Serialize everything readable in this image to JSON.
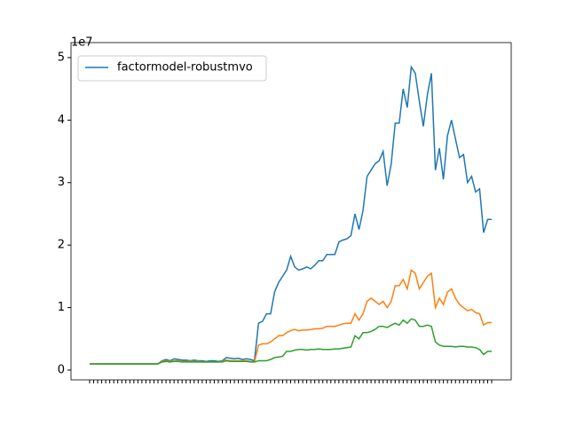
{
  "chart_data": {
    "type": "line",
    "offset_label": "1e7",
    "categories": [
      null,
      null,
      null,
      null,
      null,
      null,
      null,
      null,
      null,
      null,
      null,
      null,
      null,
      null,
      null,
      null,
      null,
      null,
      null,
      null,
      null,
      null,
      null,
      null,
      null,
      null,
      null,
      null,
      null,
      null,
      null,
      null,
      null,
      null,
      null,
      null,
      null,
      null,
      null,
      null,
      null,
      null,
      null,
      null,
      null,
      null,
      null,
      null,
      null,
      null,
      null,
      null,
      null,
      null,
      null,
      null,
      null,
      null,
      null,
      null,
      null,
      null,
      null,
      null,
      null,
      null,
      null,
      null,
      null,
      null,
      null,
      null,
      null,
      null,
      null,
      null,
      null,
      null,
      null,
      null,
      null,
      null,
      null,
      null,
      null,
      null,
      null,
      null,
      null,
      null,
      null,
      null,
      null,
      null,
      null,
      null,
      null,
      null,
      null,
      null,
      null
    ],
    "series": [
      {
        "name": "factormodel-robustmvo",
        "color": "#1f77b4",
        "values": [
          0.1,
          0.1,
          0.1,
          0.1,
          0.1,
          0.1,
          0.1,
          0.1,
          0.1,
          0.1,
          0.1,
          0.1,
          0.1,
          0.1,
          0.1,
          0.1,
          0.1,
          0.1,
          0.15,
          0.17,
          0.15,
          0.18,
          0.17,
          0.16,
          0.16,
          0.15,
          0.16,
          0.15,
          0.15,
          0.14,
          0.15,
          0.15,
          0.14,
          0.15,
          0.2,
          0.19,
          0.18,
          0.19,
          0.17,
          0.18,
          0.17,
          0.15,
          0.75,
          0.78,
          0.9,
          0.9,
          1.25,
          1.4,
          1.5,
          1.6,
          1.82,
          1.65,
          1.6,
          1.62,
          1.65,
          1.62,
          1.68,
          1.75,
          1.75,
          1.85,
          1.85,
          1.85,
          2.05,
          2.08,
          2.1,
          2.15,
          2.5,
          2.25,
          2.55,
          3.1,
          3.2,
          3.3,
          3.35,
          3.5,
          2.95,
          3.3,
          3.95,
          3.95,
          4.5,
          4.2,
          4.85,
          4.75,
          4.3,
          3.9,
          4.4,
          4.75,
          3.2,
          3.55,
          3.05,
          3.75,
          4.0,
          3.7,
          3.4,
          3.45,
          3.0,
          3.1,
          2.85,
          2.9,
          2.2,
          2.41,
          2.41
        ]
      },
      {
        "color": "#ff7f0e",
        "values": [
          0.1,
          0.1,
          0.1,
          0.1,
          0.1,
          0.1,
          0.1,
          0.1,
          0.1,
          0.1,
          0.1,
          0.1,
          0.1,
          0.1,
          0.1,
          0.1,
          0.1,
          0.1,
          0.14,
          0.15,
          0.14,
          0.15,
          0.15,
          0.14,
          0.14,
          0.14,
          0.14,
          0.14,
          0.13,
          0.13,
          0.13,
          0.13,
          0.13,
          0.14,
          0.16,
          0.15,
          0.15,
          0.15,
          0.15,
          0.15,
          0.14,
          0.13,
          0.4,
          0.42,
          0.42,
          0.45,
          0.5,
          0.55,
          0.55,
          0.6,
          0.63,
          0.65,
          0.63,
          0.64,
          0.64,
          0.65,
          0.66,
          0.66,
          0.67,
          0.7,
          0.7,
          0.7,
          0.72,
          0.74,
          0.75,
          0.75,
          0.9,
          0.8,
          0.9,
          1.1,
          1.15,
          1.1,
          1.05,
          1.1,
          1.0,
          1.1,
          1.35,
          1.35,
          1.45,
          1.3,
          1.6,
          1.55,
          1.3,
          1.4,
          1.5,
          1.55,
          1.0,
          1.15,
          1.05,
          1.25,
          1.3,
          1.15,
          1.05,
          1.0,
          0.95,
          0.97,
          0.92,
          0.9,
          0.72,
          0.76,
          0.76
        ]
      },
      {
        "color": "#2ca02c",
        "values": [
          0.1,
          0.1,
          0.1,
          0.1,
          0.1,
          0.1,
          0.1,
          0.1,
          0.1,
          0.1,
          0.1,
          0.1,
          0.1,
          0.1,
          0.1,
          0.1,
          0.1,
          0.1,
          0.13,
          0.14,
          0.13,
          0.14,
          0.14,
          0.13,
          0.13,
          0.13,
          0.13,
          0.13,
          0.13,
          0.13,
          0.13,
          0.13,
          0.13,
          0.13,
          0.15,
          0.14,
          0.14,
          0.14,
          0.14,
          0.14,
          0.13,
          0.13,
          0.15,
          0.15,
          0.15,
          0.17,
          0.2,
          0.21,
          0.22,
          0.3,
          0.3,
          0.32,
          0.33,
          0.33,
          0.32,
          0.33,
          0.33,
          0.34,
          0.33,
          0.33,
          0.33,
          0.34,
          0.34,
          0.35,
          0.36,
          0.37,
          0.55,
          0.5,
          0.6,
          0.6,
          0.62,
          0.65,
          0.7,
          0.7,
          0.68,
          0.72,
          0.75,
          0.72,
          0.8,
          0.75,
          0.82,
          0.8,
          0.7,
          0.7,
          0.72,
          0.7,
          0.45,
          0.4,
          0.38,
          0.38,
          0.38,
          0.37,
          0.38,
          0.38,
          0.37,
          0.37,
          0.36,
          0.33,
          0.25,
          0.3,
          0.3
        ]
      }
    ],
    "ylim": [
      -0.156,
      5.24
    ],
    "yticks": [
      0,
      1,
      2,
      3,
      4,
      5
    ],
    "legend": "upper left"
  }
}
